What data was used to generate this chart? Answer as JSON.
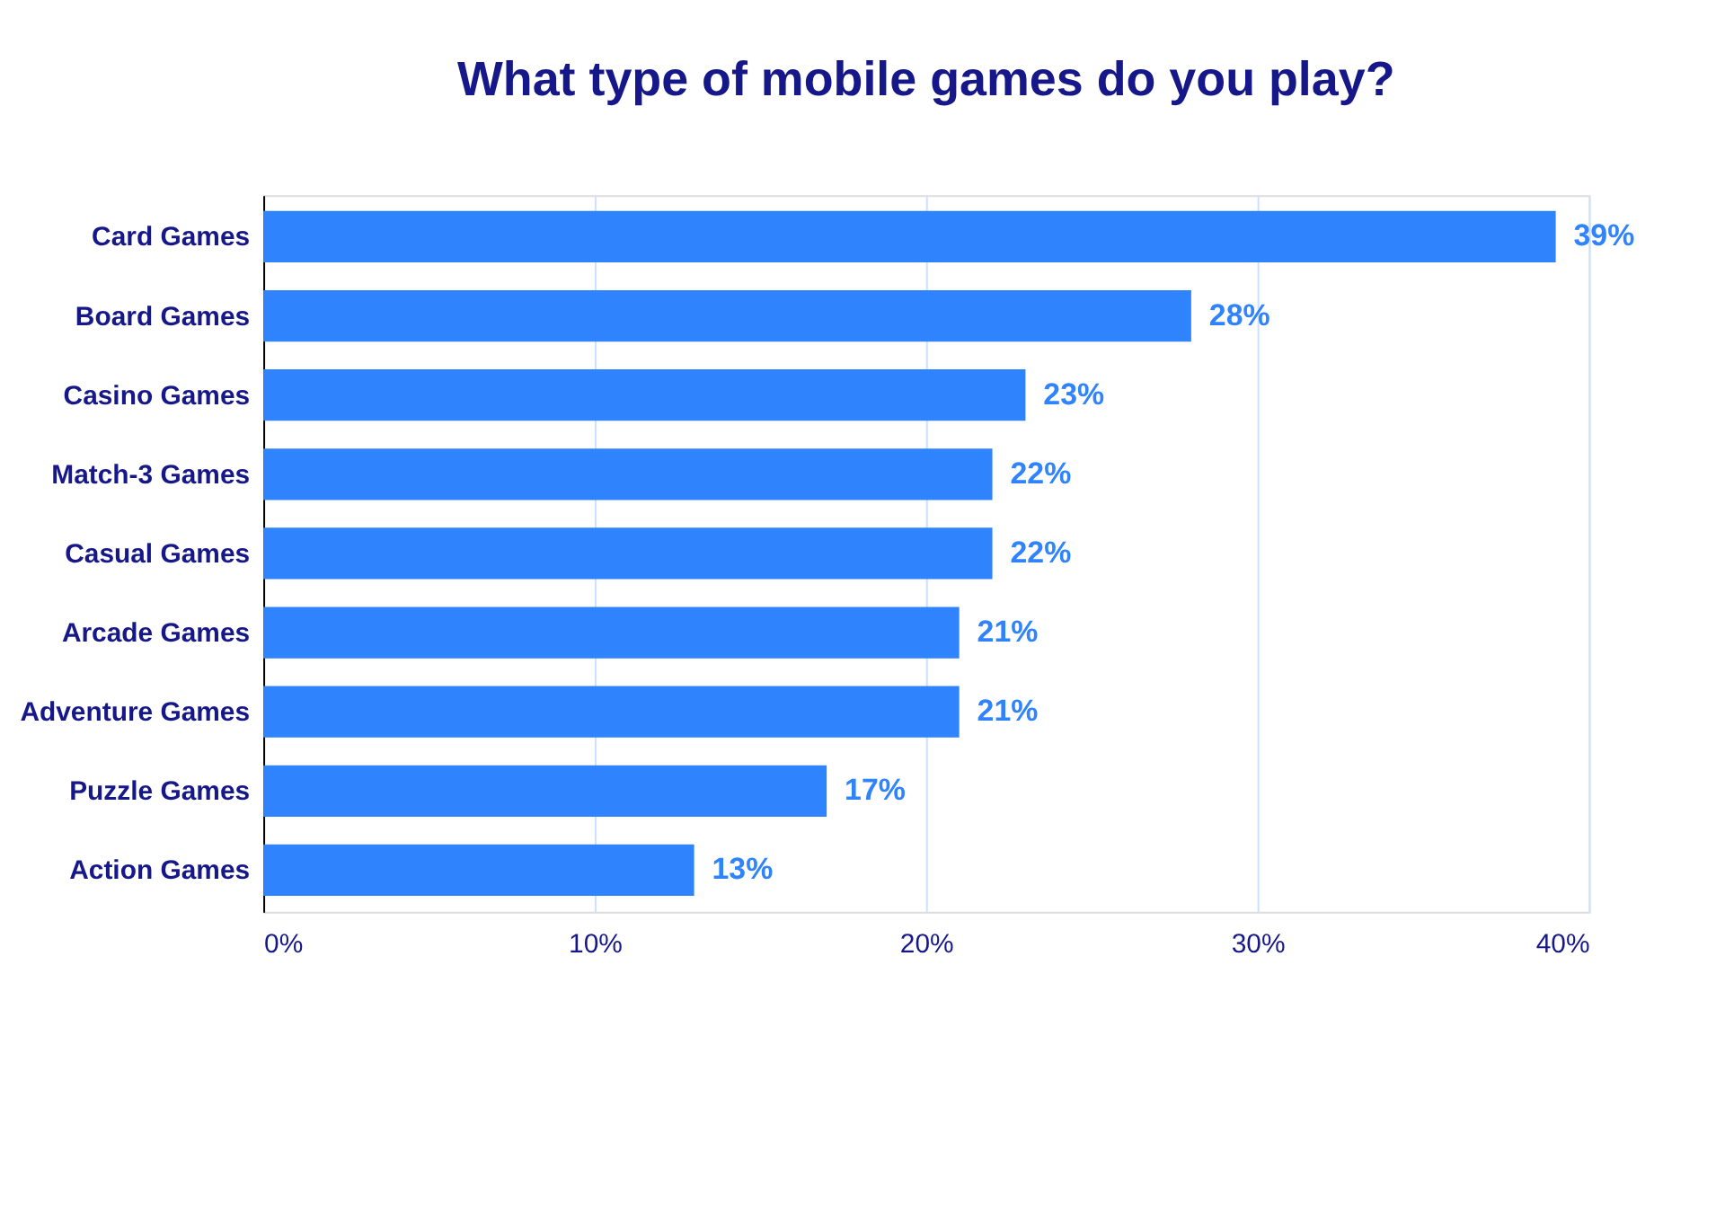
{
  "chart_data": {
    "type": "bar",
    "orientation": "horizontal",
    "title": "What type of mobile games do you play?",
    "categories": [
      "Card Games",
      "Board Games",
      "Casino Games",
      "Match-3 Games",
      "Casual Games",
      "Arcade Games",
      "Adventure Games",
      "Puzzle Games",
      "Action Games"
    ],
    "values": [
      39,
      28,
      23,
      22,
      22,
      21,
      21,
      17,
      13
    ],
    "value_labels": [
      "39%",
      "28%",
      "23%",
      "22%",
      "22%",
      "21%",
      "21%",
      "17%",
      "13%"
    ],
    "color": "#2f84fd",
    "xlim": [
      0,
      40
    ],
    "xticks": [
      {
        "value": 0,
        "label": "0%"
      },
      {
        "value": 10,
        "label": "10%"
      },
      {
        "value": 20,
        "label": "20%"
      },
      {
        "value": 30,
        "label": "30%"
      },
      {
        "value": 40,
        "label": "40%"
      }
    ],
    "grid": "x"
  }
}
